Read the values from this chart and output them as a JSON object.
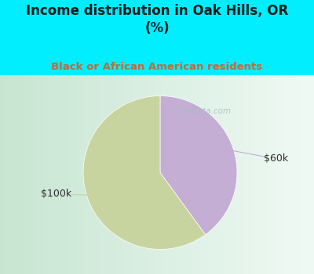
{
  "title": "Income distribution in Oak Hills, OR\n(%)",
  "subtitle": "Black or African American residents",
  "slices": [
    40,
    60
  ],
  "labels": [
    "$60k",
    "$100k"
  ],
  "colors": [
    "#c4aed4",
    "#c8d4a0"
  ],
  "label_color": "#2d2d2d",
  "start_angle": 90,
  "bg_cyan": "#00eeff",
  "title_color": "#1a1a1a",
  "subtitle_color": "#cc6633",
  "watermark": "City-Data.com",
  "watermark_color": "#aabbc0",
  "annotation_line_colors": [
    "#c4aed4",
    "#c8d4a0"
  ],
  "chart_bg_color": "#e8f5ef"
}
